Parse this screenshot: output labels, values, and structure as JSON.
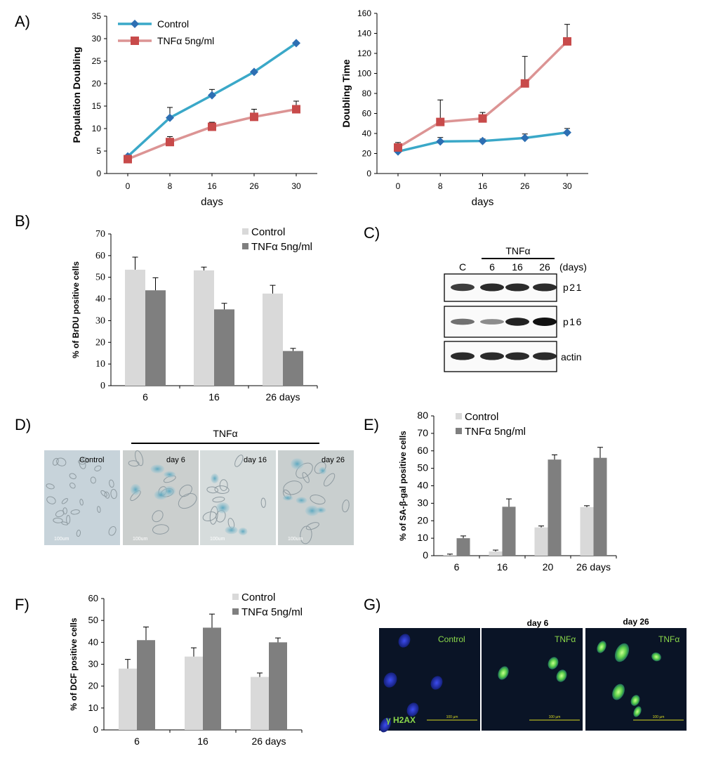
{
  "colors": {
    "control_line": "#3aa8c8",
    "control_marker": "#2d6fb3",
    "tnf_line": "#dc9494",
    "tnf_marker": "#c84a4a",
    "bar_control": "#d9d9d9",
    "bar_tnf": "#7f7f7f",
    "if_background": "#0a1426",
    "if_text": "#8ad84a"
  },
  "panels": {
    "A": {
      "label": "A)"
    },
    "B": {
      "label": "B)"
    },
    "C": {
      "label": "C)"
    },
    "D": {
      "label": "D)"
    },
    "E": {
      "label": "E)"
    },
    "F": {
      "label": "F)"
    },
    "G": {
      "label": "G)"
    }
  },
  "chart_data": [
    {
      "id": "A1",
      "type": "line",
      "title": "",
      "xlabel": "days",
      "ylabel": "Population Doubling",
      "categories": [
        "0",
        "8",
        "16",
        "26",
        "30"
      ],
      "ylim": [
        0,
        35
      ],
      "yticks": [
        0,
        5,
        10,
        15,
        20,
        25,
        30,
        35
      ],
      "legend": "top-left",
      "series": [
        {
          "name": "Control",
          "values": [
            3.8,
            12.4,
            17.4,
            22.6,
            29
          ],
          "errors": [
            0,
            2.3,
            1.3,
            0.3,
            0
          ]
        },
        {
          "name": "TNFα 5ng/ml",
          "values": [
            3.2,
            7.0,
            10.4,
            12.6,
            14.3
          ],
          "errors": [
            0,
            1.2,
            1.0,
            1.7,
            1.8
          ]
        }
      ]
    },
    {
      "id": "A2",
      "type": "line",
      "title": "",
      "xlabel": "days",
      "ylabel": "Doubling Time",
      "categories": [
        "0",
        "8",
        "16",
        "26",
        "30"
      ],
      "ylim": [
        0,
        160
      ],
      "yticks": [
        0,
        20,
        40,
        60,
        80,
        100,
        120,
        140,
        160
      ],
      "series": [
        {
          "name": "Control",
          "values": [
            22,
            32,
            32.5,
            35.5,
            41
          ],
          "errors": [
            0,
            4,
            2,
            4,
            4
          ]
        },
        {
          "name": "TNFα 5ng/ml",
          "values": [
            26,
            51.5,
            55,
            90,
            132
          ],
          "errors": [
            5,
            22,
            6,
            27,
            17
          ]
        }
      ]
    },
    {
      "id": "B",
      "type": "bar",
      "title": "",
      "xlabel": "",
      "ylabel": "% of BrDU positive cells",
      "categories": [
        "6",
        "16",
        "26 days"
      ],
      "ylim": [
        0,
        70
      ],
      "yticks": [
        0,
        10,
        20,
        30,
        40,
        50,
        60,
        70
      ],
      "legend": "top-right",
      "series": [
        {
          "name": "Control",
          "values": [
            53.5,
            53.2,
            42.5
          ],
          "errors": [
            5.8,
            1.5,
            3.8
          ]
        },
        {
          "name": "TNFα 5ng/ml",
          "values": [
            44.0,
            35.2,
            16.0
          ],
          "errors": [
            5.8,
            2.8,
            1.2
          ]
        }
      ]
    },
    {
      "id": "E",
      "type": "bar",
      "title": "",
      "xlabel": "",
      "ylabel": "% of SA-β-gal  positive  cells",
      "categories": [
        "6",
        "16",
        "20",
        "26 days"
      ],
      "ylim": [
        0,
        80
      ],
      "yticks": [
        0,
        10,
        20,
        30,
        40,
        50,
        60,
        70,
        80
      ],
      "legend": "top-left",
      "series": [
        {
          "name": "Control",
          "values": [
            0.3,
            2.4,
            16.2,
            27.8
          ],
          "errors": [
            0.6,
            0.8,
            0.8,
            0.8
          ]
        },
        {
          "name": "TNFα 5ng/ml",
          "values": [
            10.0,
            28.0,
            55.0,
            56.0
          ],
          "errors": [
            1.3,
            4.5,
            2.7,
            6.0
          ]
        }
      ]
    },
    {
      "id": "F",
      "type": "bar",
      "title": "",
      "xlabel": "",
      "ylabel": "% of DCF positive cells",
      "categories": [
        "6",
        "16",
        "26 days"
      ],
      "ylim": [
        0,
        60
      ],
      "yticks": [
        0,
        10,
        20,
        30,
        40,
        50,
        60
      ],
      "legend": "top-right",
      "series": [
        {
          "name": "Control",
          "values": [
            28.0,
            33.5,
            24.2
          ],
          "errors": [
            4.2,
            4.0,
            1.8
          ]
        },
        {
          "name": "TNFα 5ng/ml",
          "values": [
            41.0,
            46.7,
            40.0
          ],
          "errors": [
            6.0,
            6.2,
            2.0
          ]
        }
      ]
    }
  ],
  "western": {
    "group_label": "TNFα",
    "lanes": [
      "C",
      "6",
      "16",
      "26"
    ],
    "unit": "(days)",
    "blots": [
      {
        "name": "p21",
        "intensity": [
          0.75,
          0.85,
          0.85,
          0.85
        ]
      },
      {
        "name": "p16",
        "intensity": [
          0.45,
          0.3,
          0.9,
          1.0
        ]
      },
      {
        "name": "actin",
        "intensity": [
          0.85,
          0.85,
          0.85,
          0.85
        ]
      }
    ]
  },
  "micro": {
    "header": "TNFα",
    "scale": "100um",
    "panels": [
      "Control",
      "day 6",
      "day 16",
      "day 26"
    ]
  },
  "immuno": {
    "marker": "γ H2AX",
    "scale": "100 µm",
    "titles": [
      "",
      "day 6",
      "day 26"
    ],
    "labels": [
      "Control",
      "TNFα",
      "TNFα"
    ]
  }
}
